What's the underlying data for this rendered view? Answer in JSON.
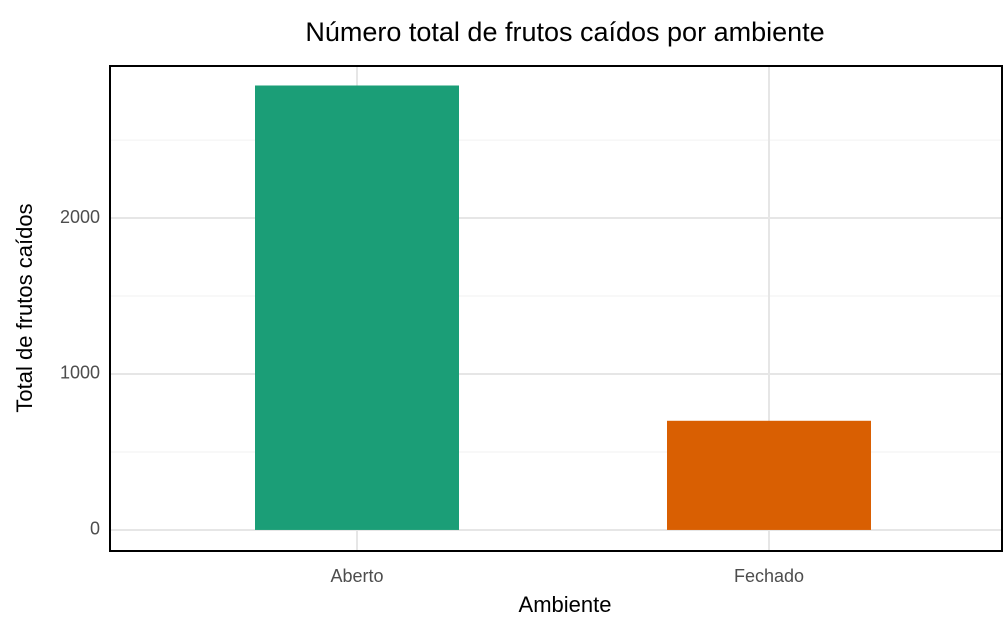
{
  "chart_data": {
    "type": "bar",
    "title": "Número total de frutos caídos por ambiente",
    "x_label": "Ambiente",
    "y_label": "Total de frutos caídos",
    "categories": [
      "Aberto",
      "Fechado"
    ],
    "values": [
      2850,
      700
    ],
    "colors": [
      "#1b9e77",
      "#d95f02"
    ],
    "ylim": [
      -135,
      2975
    ],
    "yticks": [
      0,
      1000,
      2000
    ],
    "minor_yticks": [
      500,
      1500,
      2500
    ],
    "grid": true
  }
}
